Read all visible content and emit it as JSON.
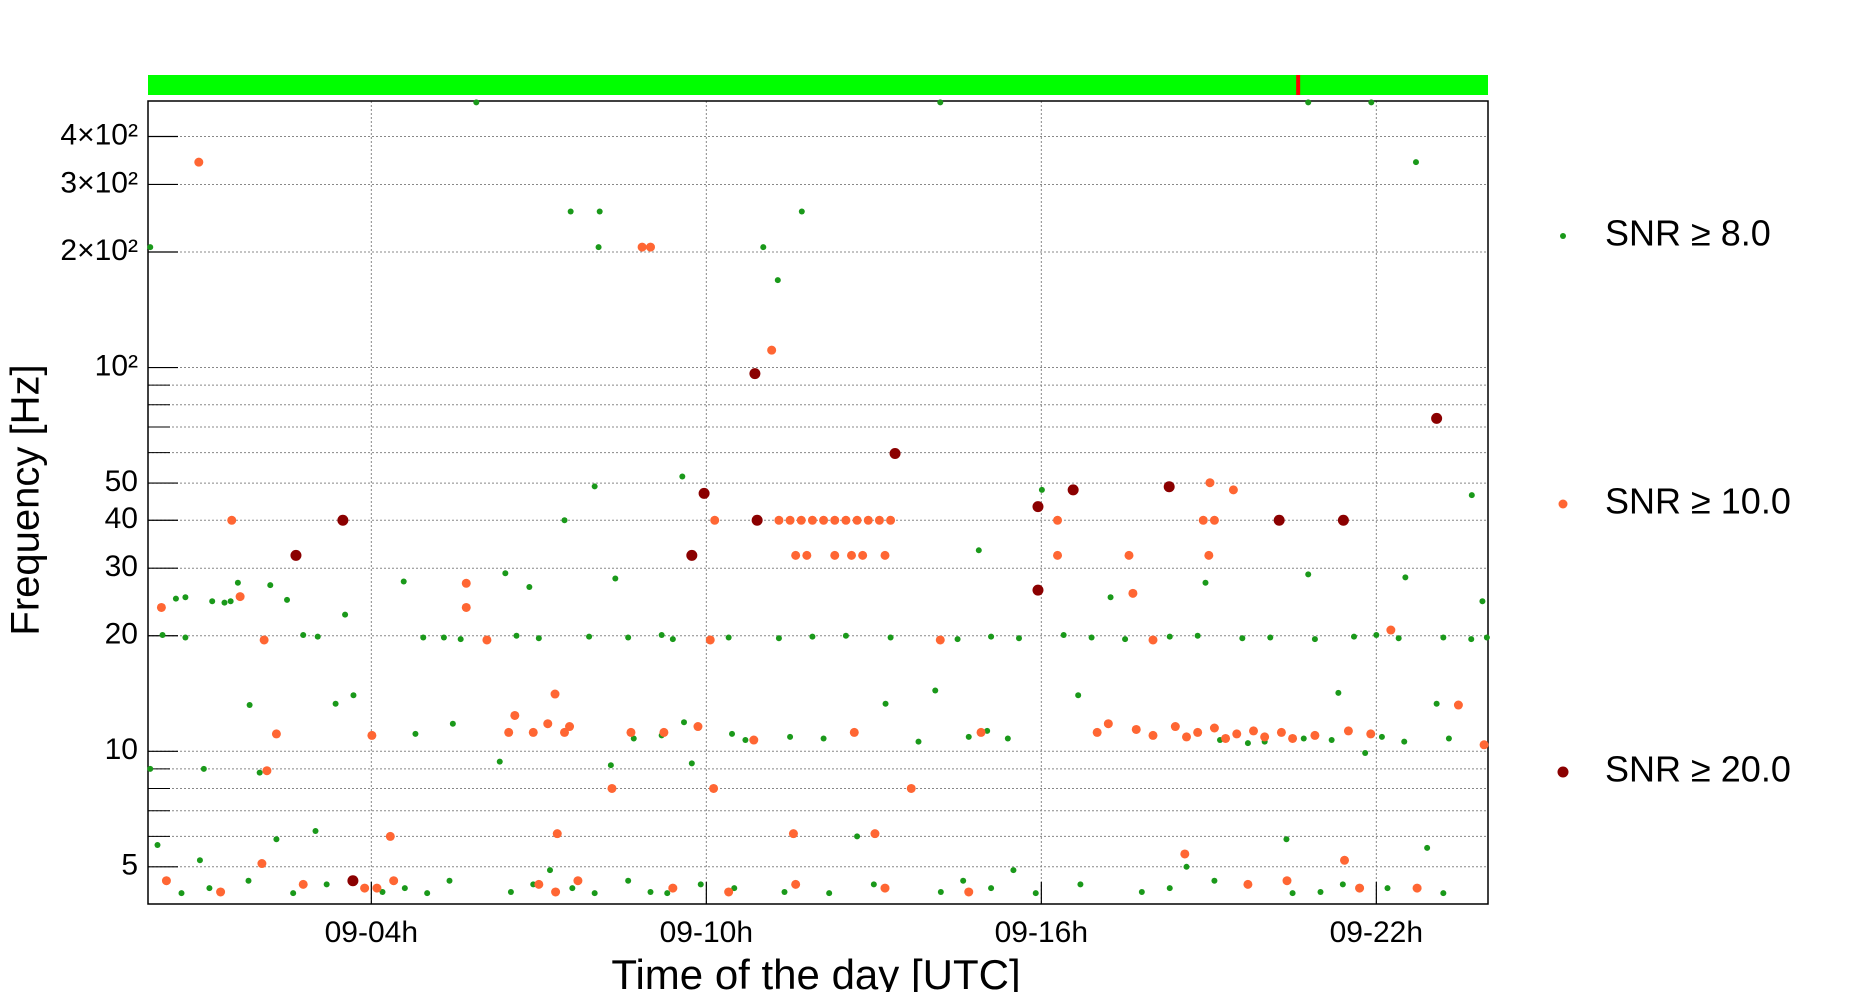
{
  "chart_data": {
    "type": "scatter",
    "xlabel": "Time of the day [UTC]",
    "ylabel": "Frequency [Hz]",
    "xlim": [
      0,
      24
    ],
    "xticks": [
      {
        "value": 4,
        "label": "09-04h"
      },
      {
        "value": 10,
        "label": "09-10h"
      },
      {
        "value": 16,
        "label": "09-16h"
      },
      {
        "value": 22,
        "label": "09-22h"
      }
    ],
    "ylim": [
      4,
      495
    ],
    "log_y": true,
    "grid": true,
    "yticks": [
      5,
      10,
      20,
      30,
      40,
      50,
      {
        "value": 100,
        "label": "10²"
      },
      {
        "value": 200,
        "label": "2×10²"
      },
      {
        "value": 300,
        "label": "3×10²"
      },
      {
        "value": 400,
        "label": "4×10²"
      }
    ],
    "yminor_ticks": [
      6,
      7,
      8,
      9,
      60,
      70,
      80,
      90
    ],
    "status_bar": {
      "color": "#00ff00",
      "flag_color": "#ff0000",
      "flag_x": [
        20.6
      ]
    },
    "series": [
      {
        "name": "SNR ≥ 8.0",
        "color": "#1a991a",
        "marker_size": 3,
        "x": [
          0.04,
          0.04,
          0.17,
          0.26,
          0.67,
          0.5,
          0.67,
          0.93,
          1.15,
          1.37,
          1.48,
          1.61,
          1.82,
          2.19,
          2.3,
          2.49,
          2.78,
          3.04,
          3.36,
          3.53,
          3.68,
          4.58,
          4.79,
          5.46,
          5.88,
          4.93,
          6.4,
          6.83,
          7.46,
          8.0,
          8.09,
          7.57,
          8.07,
          8.29,
          8.37,
          9.57,
          9.74,
          10.46,
          11.02,
          11.28,
          11.71,
          13.21,
          14.19,
          14.1,
          14.88,
          15.03,
          16.01,
          16.66,
          17.24,
          18.94,
          20.39,
          20.78,
          20.78,
          21.32,
          21.91,
          22.71,
          22.91,
          23.71,
          23.9,
          23.08,
          22.52,
          5.3,
          5.6,
          6.6,
          7.0,
          7.9,
          8.6,
          9.2,
          9.4,
          10.4,
          11.3,
          11.9,
          12.5,
          13.3,
          14.5,
          15.1,
          15.6,
          16.4,
          16.9,
          17.5,
          18.3,
          18.8,
          19.6,
          20.1,
          20.9,
          21.6,
          22.0,
          22.4,
          23.2,
          23.7,
          23.98,
          8.7,
          9.2,
          10.7,
          11.5,
          12.1,
          13.8,
          14.7,
          15.4,
          19.2,
          19.7,
          20.0,
          20.7,
          21.2,
          22.1,
          22.5,
          23.3,
          0.6,
          1.1,
          1.3,
          1.8,
          2.6,
          3.2,
          4.2,
          4.6,
          5.0,
          5.4,
          6.5,
          6.9,
          7.6,
          8.0,
          8.6,
          9.0,
          9.3,
          9.9,
          10.5,
          11.4,
          12.2,
          13.0,
          14.2,
          14.6,
          15.1,
          15.9,
          16.7,
          17.8,
          18.3,
          19.1,
          20.5,
          21.0,
          21.4,
          22.2,
          23.2,
          1.0,
          2.0,
          3.0,
          6.3,
          7.2,
          9.6,
          12.7,
          15.5,
          18.6,
          21.8
        ],
        "values": [
          206,
          9.0,
          5.7,
          20.1,
          19.8,
          25,
          25.2,
          5.2,
          24.6,
          24.4,
          24.6,
          27.5,
          13.2,
          27.1,
          5.9,
          24.8,
          20.1,
          19.9,
          13.3,
          22.7,
          14.0,
          27.7,
          11.1,
          11.8,
          491,
          19.8,
          29.1,
          26.8,
          40,
          49,
          255,
          255,
          206,
          9.2,
          28.2,
          52,
          9.3,
          11.1,
          206,
          169,
          255,
          13.3,
          491,
          14.4,
          33.4,
          11.3,
          48,
          14,
          25.2,
          27.5,
          5.9,
          28.9,
          491,
          14.2,
          491,
          343,
          5.6,
          46.5,
          24.6,
          13.3,
          28.4,
          19.8,
          19.6,
          20.0,
          19.7,
          19.9,
          19.8,
          20.1,
          19.6,
          19.8,
          19.7,
          19.9,
          20.0,
          19.8,
          19.6,
          19.9,
          19.7,
          20.1,
          19.8,
          19.6,
          19.9,
          20.0,
          19.7,
          19.8,
          19.6,
          19.9,
          20.1,
          19.7,
          19.8,
          19.6,
          19.8,
          10.8,
          11.0,
          10.7,
          10.9,
          10.8,
          10.6,
          10.9,
          10.8,
          10.7,
          10.5,
          10.6,
          10.8,
          10.7,
          10.9,
          10.6,
          10.8,
          4.27,
          4.4,
          4.3,
          4.6,
          4.27,
          4.5,
          4.3,
          4.4,
          4.27,
          4.6,
          4.3,
          4.5,
          4.4,
          4.27,
          4.6,
          4.3,
          4.27,
          4.5,
          4.4,
          4.3,
          4.27,
          4.5,
          4.3,
          4.6,
          4.4,
          4.27,
          4.5,
          4.3,
          4.4,
          4.6,
          4.27,
          4.3,
          4.5,
          4.4,
          4.27,
          9.0,
          8.8,
          6.2,
          9.4,
          4.9,
          11.9,
          6.0,
          4.9,
          5.0,
          9.9
        ]
      },
      {
        "name": "SNR ≥ 10.0",
        "color": "#ff6633",
        "marker_size": 4.5,
        "x": [
          0.24,
          0.33,
          0.91,
          1.5,
          1.65,
          2.08,
          2.13,
          2.3,
          2.04,
          2.78,
          3.88,
          4.01,
          4.34,
          5.7,
          5.7,
          6.07,
          6.46,
          6.57,
          6.9,
          7.16,
          7.29,
          7.33,
          7.46,
          7.55,
          8.31,
          8.85,
          9.0,
          8.65,
          9.24,
          9.85,
          10.07,
          10.15,
          10.13,
          11.17,
          11.56,
          10.85,
          12.65,
          13.02,
          13.67,
          14.19,
          14.92,
          16.29,
          16.29,
          17.0,
          17.2,
          17.57,
          17.64,
          18.0,
          18.57,
          19.02,
          19.44,
          18.9,
          19.1,
          19.0,
          21.43,
          22.26,
          22.73,
          23.47,
          23.93,
          11.3,
          11.5,
          11.7,
          11.9,
          12.1,
          12.3,
          12.5,
          12.7,
          12.9,
          13.1,
          13.3,
          11.6,
          11.8,
          12.3,
          12.6,
          12.8,
          13.2,
          17.7,
          18.0,
          18.4,
          18.6,
          18.8,
          19.1,
          19.3,
          19.5,
          19.8,
          20.0,
          20.3,
          20.5,
          20.9,
          21.5,
          21.9,
          1.3,
          4.1,
          4.4,
          7.0,
          7.3,
          7.7,
          9.4,
          10.4,
          11.6,
          13.2,
          14.7,
          19.7,
          20.4,
          21.7
        ],
        "values": [
          23.7,
          4.6,
          343,
          40,
          25.3,
          19.5,
          8.9,
          11.1,
          5.1,
          4.5,
          4.4,
          11,
          6.0,
          27.4,
          23.7,
          19.5,
          11.2,
          12.4,
          11.2,
          11.8,
          14.1,
          6.1,
          11.2,
          11.6,
          8.0,
          206,
          206,
          11.2,
          11.2,
          11.6,
          19.5,
          40,
          8.0,
          111,
          6.1,
          10.7,
          11.2,
          6.1,
          8.0,
          19.5,
          11.2,
          40,
          32.4,
          11.2,
          11.8,
          32.4,
          25.8,
          19.5,
          5.4,
          50.1,
          48,
          40,
          40,
          32.4,
          5.2,
          20.7,
          4.4,
          13.2,
          10.4,
          40,
          40,
          40,
          40,
          40,
          40,
          40,
          40,
          40,
          40,
          40,
          32.4,
          32.4,
          32.4,
          32.4,
          32.4,
          32.4,
          11.4,
          11.0,
          11.6,
          10.9,
          11.2,
          11.5,
          10.8,
          11.1,
          11.3,
          10.9,
          11.2,
          10.8,
          11.0,
          11.3,
          11.1,
          4.3,
          4.4,
          4.6,
          4.5,
          4.3,
          4.6,
          4.4,
          4.3,
          4.5,
          4.4,
          4.3,
          4.5,
          4.6,
          4.4
        ]
      },
      {
        "name": "SNR ≥ 20.0",
        "color": "#8b0000",
        "marker_size": 5.5,
        "x": [
          2.65,
          3.49,
          3.67,
          9.74,
          9.96,
          10.87,
          10.91,
          13.38,
          15.94,
          15.94,
          16.57,
          18.29,
          20.26,
          21.41,
          23.08
        ],
        "values": [
          32.4,
          40,
          4.6,
          32.4,
          47,
          96.4,
          40,
          59.7,
          43.4,
          26.3,
          48,
          48.9,
          40,
          40,
          73.7
        ]
      }
    ]
  }
}
